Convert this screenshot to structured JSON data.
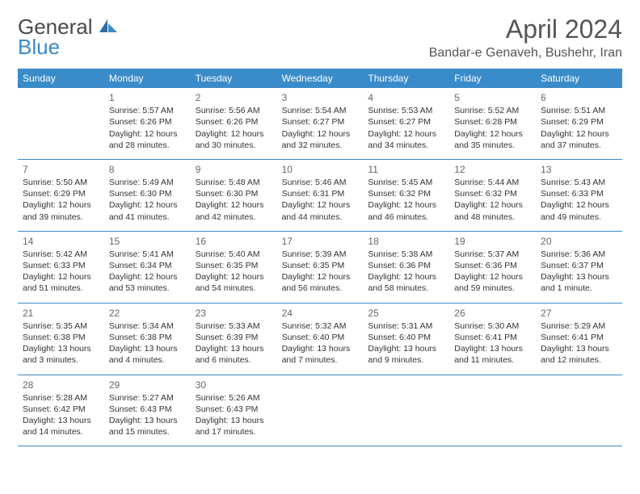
{
  "brand": {
    "general": "General",
    "blue": "Blue"
  },
  "header": {
    "title": "April 2024",
    "location": "Bandar-e Genaveh, Bushehr, Iran"
  },
  "colors": {
    "accent": "#3a8bc9",
    "text": "#333333",
    "header_text": "#555555",
    "bg": "#ffffff"
  },
  "day_names": [
    "Sunday",
    "Monday",
    "Tuesday",
    "Wednesday",
    "Thursday",
    "Friday",
    "Saturday"
  ],
  "layout": {
    "cols": 7,
    "rows": 5,
    "cell_font_size": 10.5,
    "header_font_size": 12,
    "title_font_size": 32
  },
  "weeks": [
    [
      null,
      {
        "n": "1",
        "sr": "Sunrise: 5:57 AM",
        "ss": "Sunset: 6:26 PM",
        "dl": "Daylight: 12 hours and 28 minutes."
      },
      {
        "n": "2",
        "sr": "Sunrise: 5:56 AM",
        "ss": "Sunset: 6:26 PM",
        "dl": "Daylight: 12 hours and 30 minutes."
      },
      {
        "n": "3",
        "sr": "Sunrise: 5:54 AM",
        "ss": "Sunset: 6:27 PM",
        "dl": "Daylight: 12 hours and 32 minutes."
      },
      {
        "n": "4",
        "sr": "Sunrise: 5:53 AM",
        "ss": "Sunset: 6:27 PM",
        "dl": "Daylight: 12 hours and 34 minutes."
      },
      {
        "n": "5",
        "sr": "Sunrise: 5:52 AM",
        "ss": "Sunset: 6:28 PM",
        "dl": "Daylight: 12 hours and 35 minutes."
      },
      {
        "n": "6",
        "sr": "Sunrise: 5:51 AM",
        "ss": "Sunset: 6:29 PM",
        "dl": "Daylight: 12 hours and 37 minutes."
      }
    ],
    [
      {
        "n": "7",
        "sr": "Sunrise: 5:50 AM",
        "ss": "Sunset: 6:29 PM",
        "dl": "Daylight: 12 hours and 39 minutes."
      },
      {
        "n": "8",
        "sr": "Sunrise: 5:49 AM",
        "ss": "Sunset: 6:30 PM",
        "dl": "Daylight: 12 hours and 41 minutes."
      },
      {
        "n": "9",
        "sr": "Sunrise: 5:48 AM",
        "ss": "Sunset: 6:30 PM",
        "dl": "Daylight: 12 hours and 42 minutes."
      },
      {
        "n": "10",
        "sr": "Sunrise: 5:46 AM",
        "ss": "Sunset: 6:31 PM",
        "dl": "Daylight: 12 hours and 44 minutes."
      },
      {
        "n": "11",
        "sr": "Sunrise: 5:45 AM",
        "ss": "Sunset: 6:32 PM",
        "dl": "Daylight: 12 hours and 46 minutes."
      },
      {
        "n": "12",
        "sr": "Sunrise: 5:44 AM",
        "ss": "Sunset: 6:32 PM",
        "dl": "Daylight: 12 hours and 48 minutes."
      },
      {
        "n": "13",
        "sr": "Sunrise: 5:43 AM",
        "ss": "Sunset: 6:33 PM",
        "dl": "Daylight: 12 hours and 49 minutes."
      }
    ],
    [
      {
        "n": "14",
        "sr": "Sunrise: 5:42 AM",
        "ss": "Sunset: 6:33 PM",
        "dl": "Daylight: 12 hours and 51 minutes."
      },
      {
        "n": "15",
        "sr": "Sunrise: 5:41 AM",
        "ss": "Sunset: 6:34 PM",
        "dl": "Daylight: 12 hours and 53 minutes."
      },
      {
        "n": "16",
        "sr": "Sunrise: 5:40 AM",
        "ss": "Sunset: 6:35 PM",
        "dl": "Daylight: 12 hours and 54 minutes."
      },
      {
        "n": "17",
        "sr": "Sunrise: 5:39 AM",
        "ss": "Sunset: 6:35 PM",
        "dl": "Daylight: 12 hours and 56 minutes."
      },
      {
        "n": "18",
        "sr": "Sunrise: 5:38 AM",
        "ss": "Sunset: 6:36 PM",
        "dl": "Daylight: 12 hours and 58 minutes."
      },
      {
        "n": "19",
        "sr": "Sunrise: 5:37 AM",
        "ss": "Sunset: 6:36 PM",
        "dl": "Daylight: 12 hours and 59 minutes."
      },
      {
        "n": "20",
        "sr": "Sunrise: 5:36 AM",
        "ss": "Sunset: 6:37 PM",
        "dl": "Daylight: 13 hours and 1 minute."
      }
    ],
    [
      {
        "n": "21",
        "sr": "Sunrise: 5:35 AM",
        "ss": "Sunset: 6:38 PM",
        "dl": "Daylight: 13 hours and 3 minutes."
      },
      {
        "n": "22",
        "sr": "Sunrise: 5:34 AM",
        "ss": "Sunset: 6:38 PM",
        "dl": "Daylight: 13 hours and 4 minutes."
      },
      {
        "n": "23",
        "sr": "Sunrise: 5:33 AM",
        "ss": "Sunset: 6:39 PM",
        "dl": "Daylight: 13 hours and 6 minutes."
      },
      {
        "n": "24",
        "sr": "Sunrise: 5:32 AM",
        "ss": "Sunset: 6:40 PM",
        "dl": "Daylight: 13 hours and 7 minutes."
      },
      {
        "n": "25",
        "sr": "Sunrise: 5:31 AM",
        "ss": "Sunset: 6:40 PM",
        "dl": "Daylight: 13 hours and 9 minutes."
      },
      {
        "n": "26",
        "sr": "Sunrise: 5:30 AM",
        "ss": "Sunset: 6:41 PM",
        "dl": "Daylight: 13 hours and 11 minutes."
      },
      {
        "n": "27",
        "sr": "Sunrise: 5:29 AM",
        "ss": "Sunset: 6:41 PM",
        "dl": "Daylight: 13 hours and 12 minutes."
      }
    ],
    [
      {
        "n": "28",
        "sr": "Sunrise: 5:28 AM",
        "ss": "Sunset: 6:42 PM",
        "dl": "Daylight: 13 hours and 14 minutes."
      },
      {
        "n": "29",
        "sr": "Sunrise: 5:27 AM",
        "ss": "Sunset: 6:43 PM",
        "dl": "Daylight: 13 hours and 15 minutes."
      },
      {
        "n": "30",
        "sr": "Sunrise: 5:26 AM",
        "ss": "Sunset: 6:43 PM",
        "dl": "Daylight: 13 hours and 17 minutes."
      },
      null,
      null,
      null,
      null
    ]
  ]
}
